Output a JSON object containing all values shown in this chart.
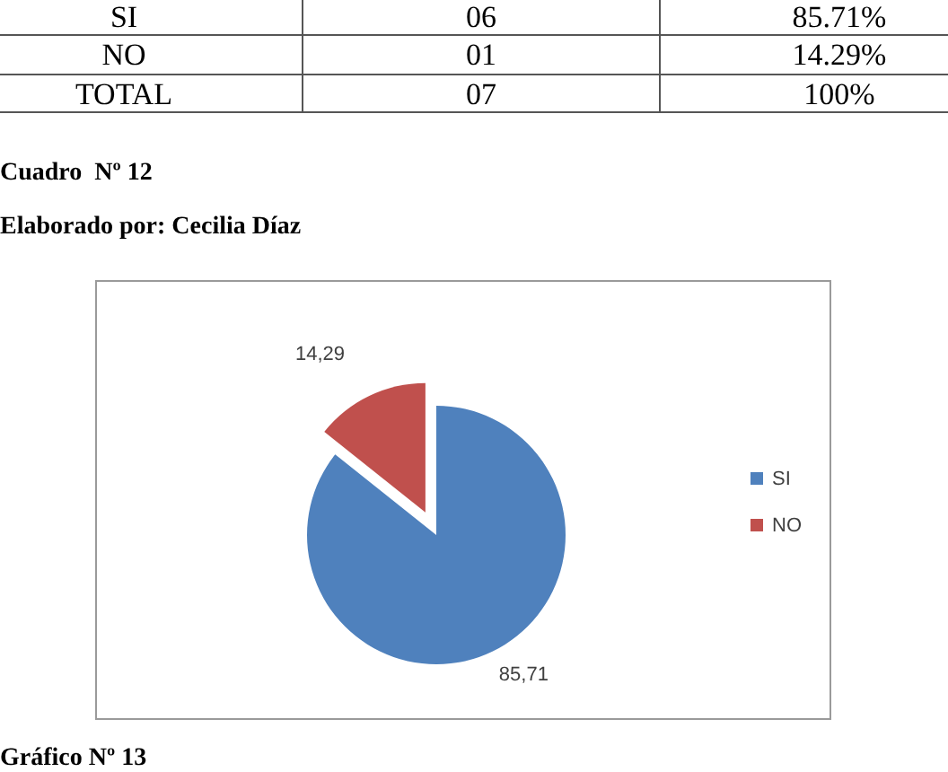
{
  "chart_data": {
    "type": "pie",
    "categories": [
      "SI",
      "NO"
    ],
    "values": [
      85.71,
      14.29
    ],
    "colors": [
      "#4f81bd",
      "#c0504d"
    ],
    "value_labels": [
      "85,71",
      "14,29"
    ],
    "legend": "right",
    "annotations": [
      "SI",
      "06",
      "85.71%",
      "NO",
      "01",
      "14.29%",
      "TOTAL",
      "07",
      "100%",
      "Cuadro  Nº 12",
      "Elaborado por: Cecilia Díaz",
      "Gráfico Nº 13"
    ]
  }
}
